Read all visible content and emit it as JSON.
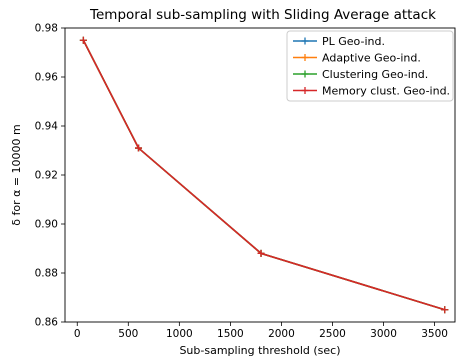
{
  "chart_data": {
    "type": "line",
    "title": "Temporal sub-sampling with Sliding Average attack",
    "xlabel": "Sub-sampling threshold (sec)",
    "ylabel": "δ for α = 10000 m",
    "xlim": [
      -120,
      3700
    ],
    "ylim": [
      0.86,
      0.98
    ],
    "x_ticks": [
      0,
      500,
      1000,
      1500,
      2000,
      2500,
      3000,
      3500
    ],
    "x_tick_labels": [
      "0",
      "500",
      "1000",
      "1500",
      "2000",
      "2500",
      "3000",
      "3500"
    ],
    "y_ticks": [
      0.86,
      0.88,
      0.9,
      0.92,
      0.94,
      0.96,
      0.98
    ],
    "y_tick_labels": [
      "0.86",
      "0.88",
      "0.90",
      "0.92",
      "0.94",
      "0.96",
      "0.98"
    ],
    "grid": false,
    "legend_position": "top-right",
    "x": [
      60,
      600,
      1800,
      3600
    ],
    "series": [
      {
        "name": "PL Geo-ind.",
        "color": "#1f77b4",
        "values": [
          0.975,
          0.931,
          0.888,
          0.865
        ]
      },
      {
        "name": "Adaptive Geo-ind.",
        "color": "#ff7f0e",
        "values": [
          0.975,
          0.931,
          0.888,
          0.865
        ]
      },
      {
        "name": "Clustering Geo-ind.",
        "color": "#2ca02c",
        "values": [
          0.975,
          0.931,
          0.888,
          0.865
        ]
      },
      {
        "name": "Memory clust. Geo-ind.",
        "color": "#d62728",
        "values": [
          0.975,
          0.931,
          0.888,
          0.865
        ]
      }
    ]
  }
}
